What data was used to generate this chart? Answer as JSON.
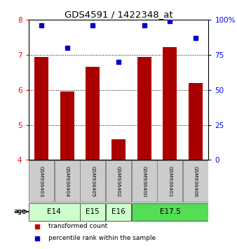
{
  "title": "GDS4591 / 1422348_at",
  "samples": [
    "GSM936403",
    "GSM936404",
    "GSM936405",
    "GSM936402",
    "GSM936400",
    "GSM936401",
    "GSM936406"
  ],
  "bar_values": [
    6.95,
    5.95,
    6.67,
    4.6,
    6.95,
    7.22,
    6.2
  ],
  "percentile_values": [
    96,
    80,
    96,
    70,
    96,
    99,
    87
  ],
  "bar_color": "#aa0000",
  "dot_color": "#0000cc",
  "ylim_left": [
    4,
    8
  ],
  "ylim_right": [
    0,
    100
  ],
  "yticks_left": [
    4,
    5,
    6,
    7,
    8
  ],
  "yticks_right": [
    0,
    25,
    50,
    75,
    100
  ],
  "ytick_labels_right": [
    "0",
    "25",
    "50",
    "75",
    "100%"
  ],
  "age_groups": [
    {
      "label": "E14",
      "cols": [
        0,
        1
      ],
      "color": "#ccffcc"
    },
    {
      "label": "E15",
      "cols": [
        2,
        2
      ],
      "color": "#ccffcc"
    },
    {
      "label": "E16",
      "cols": [
        3,
        3
      ],
      "color": "#ccffcc"
    },
    {
      "label": "E17.5",
      "cols": [
        4,
        6
      ],
      "color": "#55dd55"
    }
  ],
  "sample_box_color": "#cccccc",
  "background_color": "#ffffff",
  "legend_items": [
    {
      "label": "transformed count",
      "color": "#cc0000"
    },
    {
      "label": "percentile rank within the sample",
      "color": "#0000cc"
    }
  ]
}
